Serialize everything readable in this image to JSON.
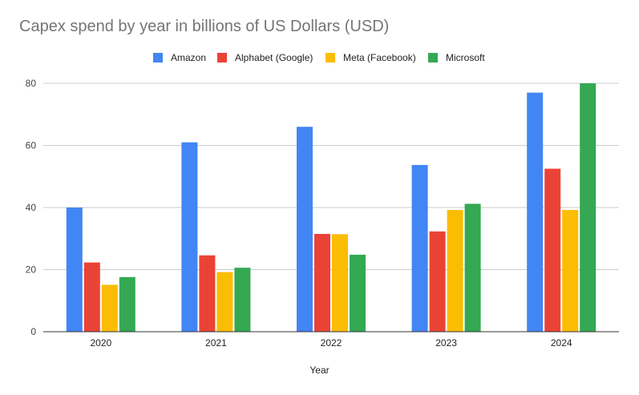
{
  "chart_data": {
    "type": "bar",
    "title": "Capex spend by year in billions of US Dollars (USD)",
    "xlabel": "Year",
    "ylabel": "",
    "categories": [
      "2020",
      "2021",
      "2022",
      "2023",
      "2024"
    ],
    "ylim": [
      0,
      80
    ],
    "yticks": [
      0,
      20,
      40,
      60,
      80
    ],
    "grid": true,
    "legend": "top-center",
    "series": [
      {
        "name": "Amazon",
        "color": "#4285F4",
        "values": [
          40,
          61,
          66,
          53.7,
          77
        ]
      },
      {
        "name": "Alphabet (Google)",
        "color": "#EA4335",
        "values": [
          22.3,
          24.6,
          31.5,
          32.3,
          52.5
        ]
      },
      {
        "name": "Meta (Facebook)",
        "color": "#FBBC04",
        "values": [
          15.1,
          19.2,
          31.4,
          39.2,
          39.2
        ]
      },
      {
        "name": "Microsoft",
        "color": "#34A853",
        "values": [
          17.6,
          20.6,
          24.8,
          41.2,
          80
        ]
      }
    ]
  }
}
